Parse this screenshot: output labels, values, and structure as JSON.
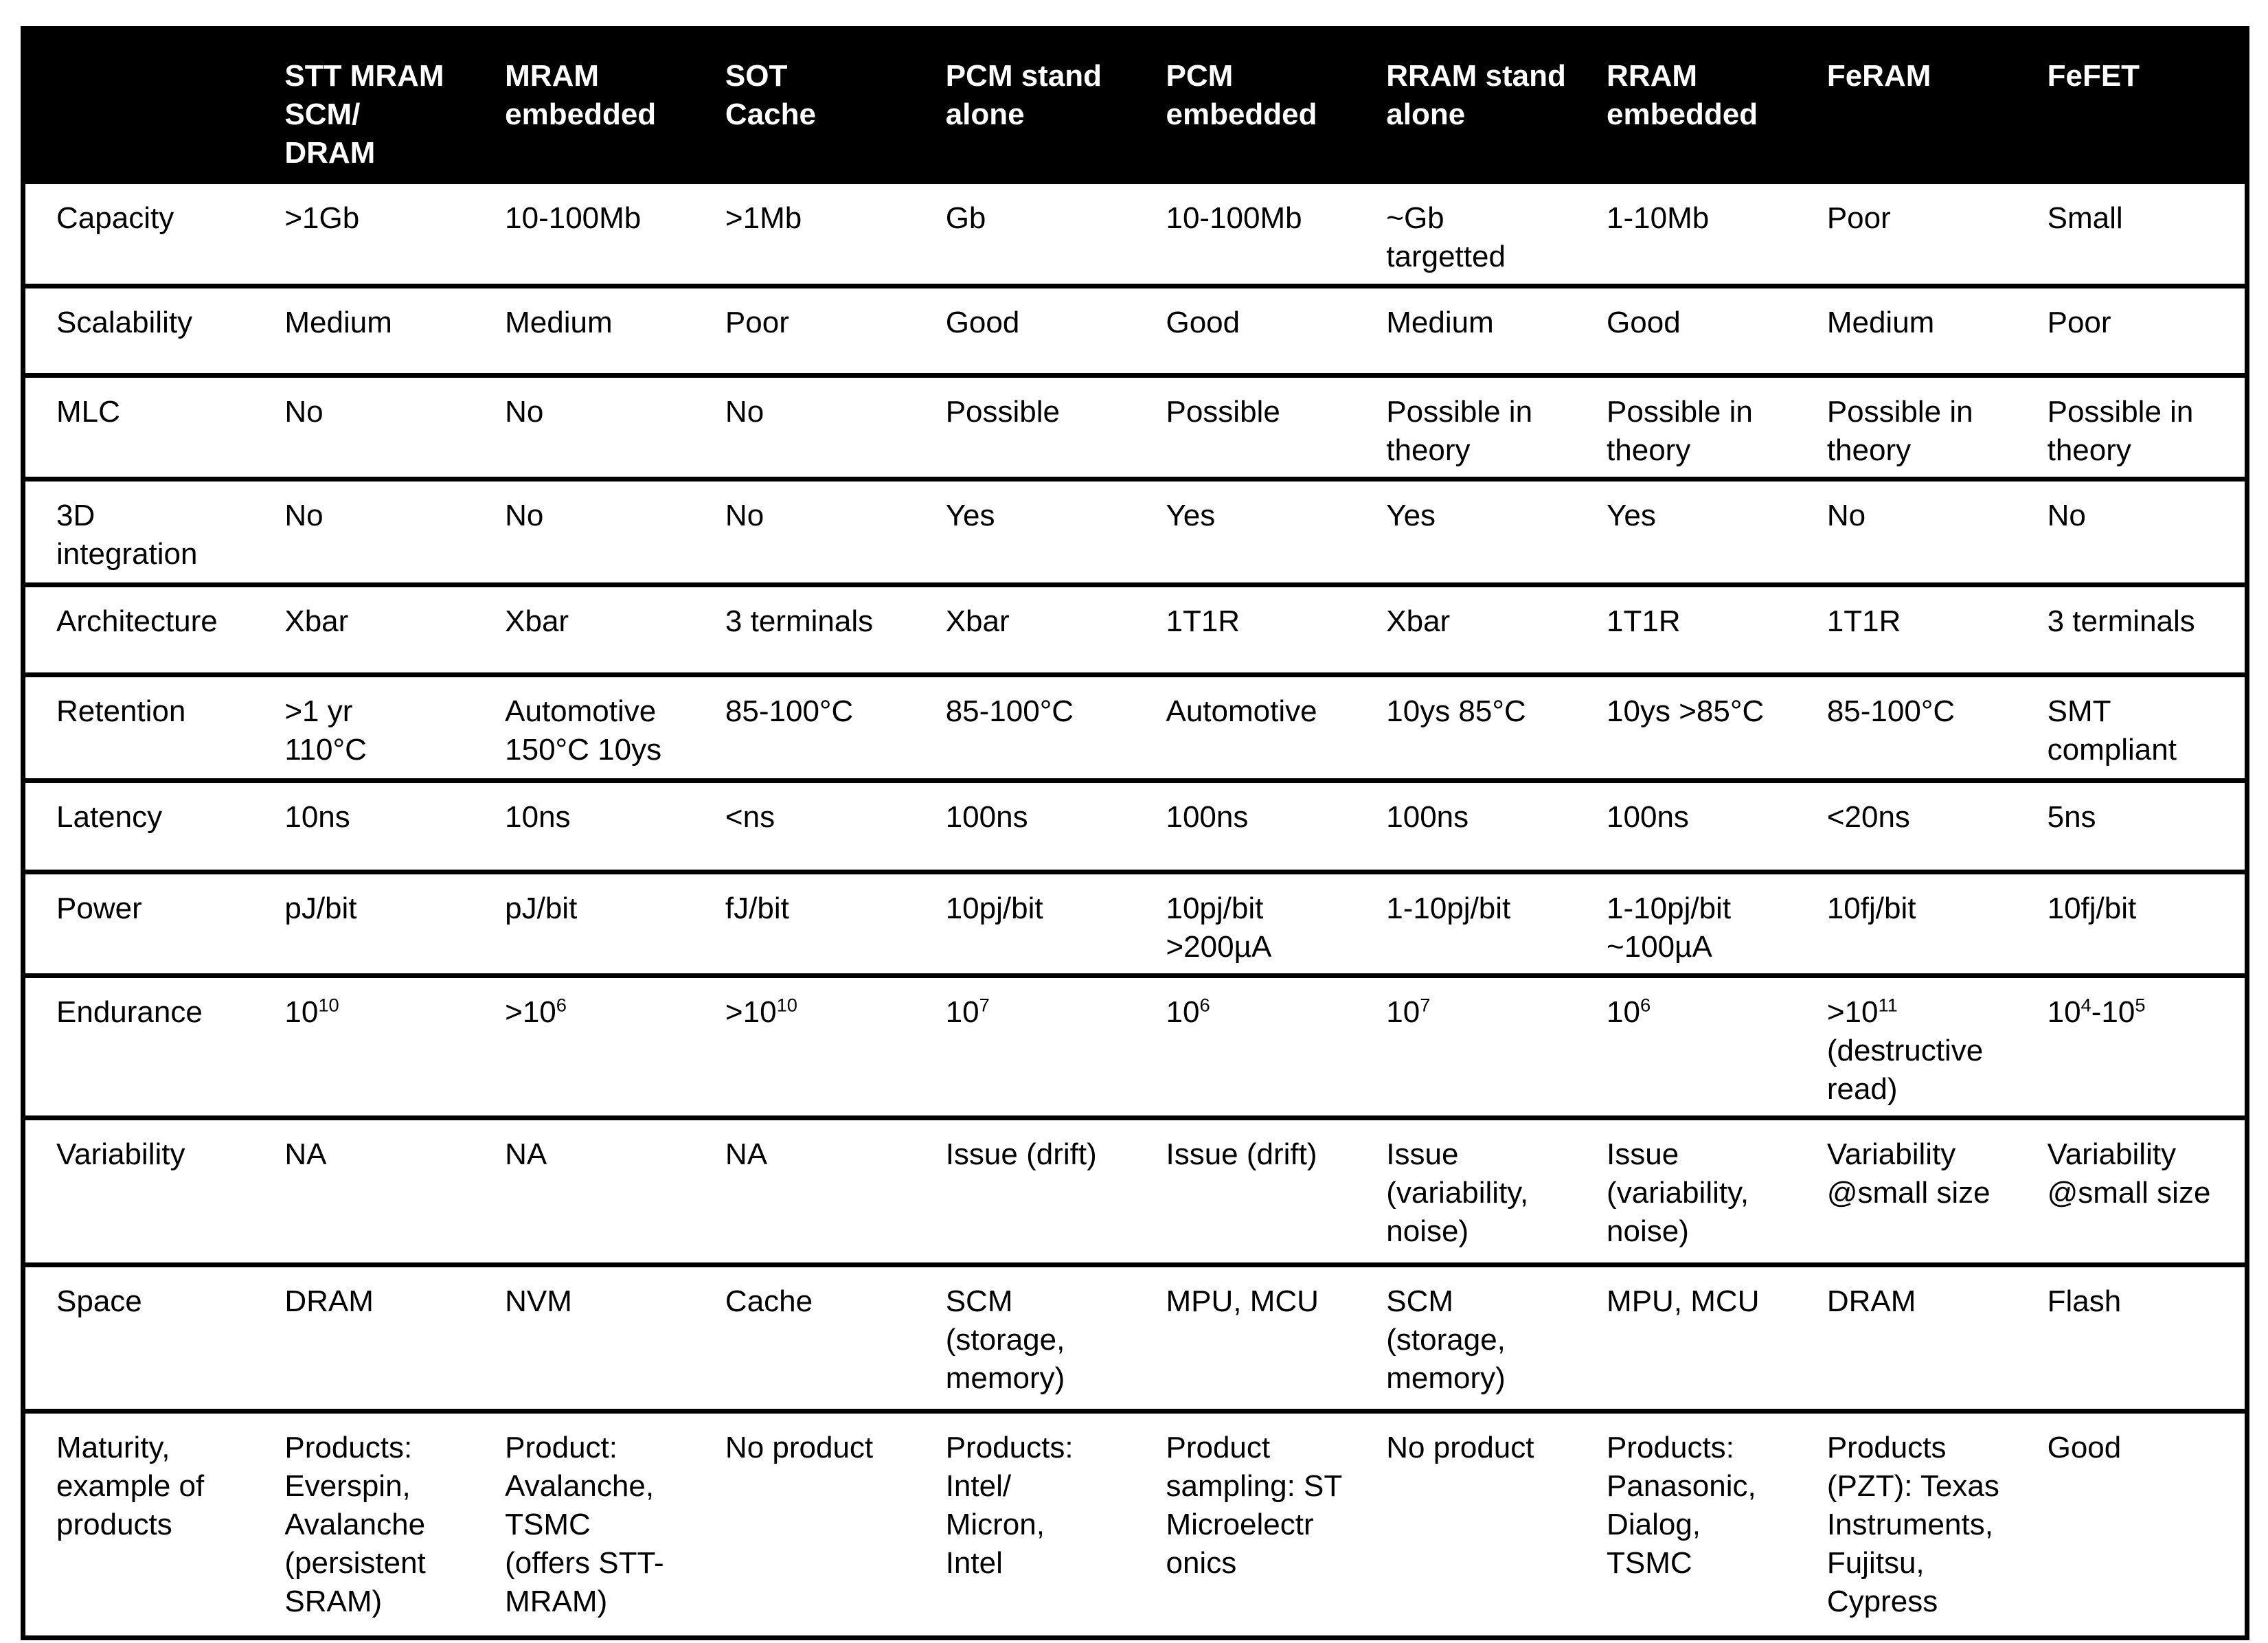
{
  "colors": {
    "header_bg": "#000000",
    "header_text": "#ffffff",
    "body_text": "#000000",
    "border": "#000000",
    "page_bg": "#ffffff"
  },
  "table": {
    "columns": [
      "",
      "STT MRAM\nSCM/\nDRAM",
      "MRAM\nembedded",
      "SOT\nCache",
      "PCM stand\nalone",
      "PCM\nembedded",
      "RRAM stand\nalone",
      "RRAM\nembedded",
      "FeRAM",
      "FeFET"
    ],
    "rows": [
      {
        "label": "Capacity",
        "cells": [
          ">1Gb",
          "10-100Mb",
          ">1Mb",
          "Gb",
          "10-100Mb",
          "~Gb\ntargetted",
          "1-10Mb",
          "Poor",
          "Small"
        ]
      },
      {
        "label": "Scalability",
        "cells": [
          "Medium",
          "Medium",
          "Poor",
          "Good",
          "Good",
          "Medium",
          "Good",
          "Medium",
          "Poor"
        ]
      },
      {
        "label": "MLC",
        "cells": [
          "No",
          "No",
          "No",
          "Possible",
          "Possible",
          "Possible in\ntheory",
          "Possible in\ntheory",
          "Possible in\ntheory",
          "Possible in\ntheory"
        ]
      },
      {
        "label": "3D\nintegration",
        "cells": [
          "No",
          "No",
          "No",
          "Yes",
          "Yes",
          "Yes",
          "Yes",
          "No",
          "No"
        ]
      },
      {
        "label": "Architecture",
        "cells": [
          "Xbar",
          "Xbar",
          "3 terminals",
          "Xbar",
          "1T1R",
          "Xbar",
          "1T1R",
          "1T1R",
          "3 terminals"
        ]
      },
      {
        "label": "Retention",
        "cells": [
          ">1 yr\n110°C",
          "Automotive\n150°C 10ys",
          "85-100°C",
          "85-100°C",
          "Automotive",
          "10ys 85°C",
          "10ys >85°C",
          "85-100°C",
          "SMT\ncompliant"
        ]
      },
      {
        "label": "Latency",
        "cells": [
          "10ns",
          "10ns",
          "<ns",
          "100ns",
          "100ns",
          "100ns",
          "100ns",
          "<20ns",
          "5ns"
        ]
      },
      {
        "label": "Power",
        "cells": [
          "pJ/bit",
          "pJ/bit",
          "fJ/bit",
          "10pj/bit",
          "10pj/bit\n>200µA",
          "1-10pj/bit",
          "1-10pj/bit\n~100µA",
          "10fj/bit",
          "10fj/bit"
        ]
      },
      {
        "label": "Endurance",
        "cells": [
          "10^10",
          ">10^6",
          ">10^10",
          "10^7",
          "10^6",
          "10^7",
          "10^6",
          ">10^11\n(destructive\nread)",
          "10^4-10^5"
        ]
      },
      {
        "label": "Variability",
        "cells": [
          "NA",
          "NA",
          "NA",
          "Issue (drift)",
          "Issue (drift)",
          "Issue\n(variability,\nnoise)",
          "Issue\n(variability,\nnoise)",
          "Variability\n@small size",
          "Variability\n@small size"
        ]
      },
      {
        "label": "Space",
        "cells": [
          "DRAM",
          "NVM",
          "Cache",
          "SCM\n(storage,\nmemory)",
          "MPU, MCU",
          "SCM\n(storage,\nmemory)",
          "MPU, MCU",
          "DRAM",
          "Flash"
        ]
      },
      {
        "label": "Maturity,\nexample of\nproducts",
        "cells": [
          "Products:\nEverspin,\nAvalanche\n(persistent\nSRAM)",
          "Product:\nAvalanche,\nTSMC\n(offers STT-\nMRAM)",
          "No product",
          "Products:\nIntel/\nMicron,\nIntel",
          "Product\nsampling: ST\nMicroelectr\nonics",
          "No product",
          "Products:\nPanasonic,\nDialog,\nTSMC",
          "Products\n(PZT): Texas\nInstruments,\nFujitsu,\nCypress",
          "Good"
        ]
      }
    ]
  }
}
